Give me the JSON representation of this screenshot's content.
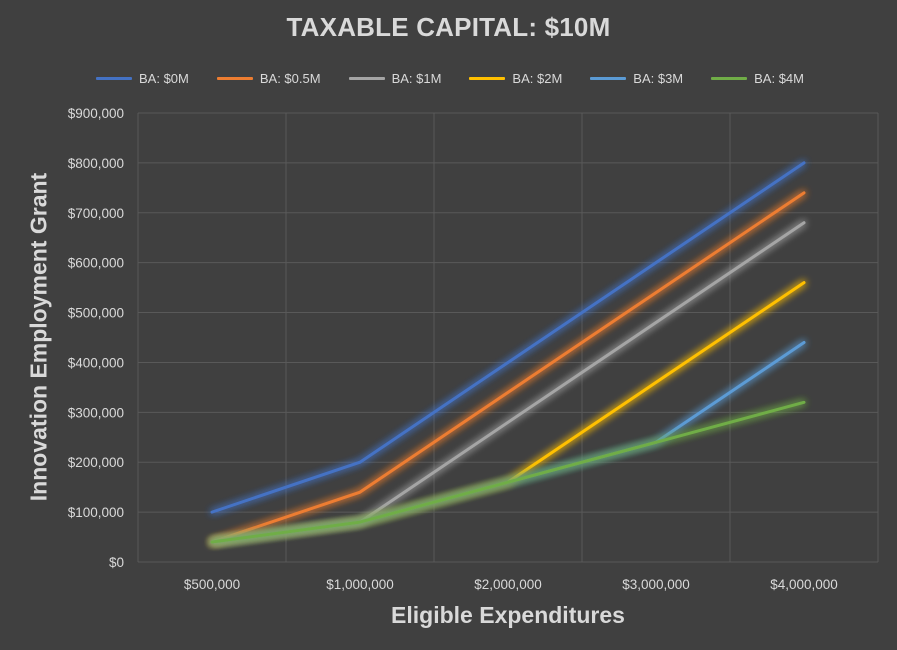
{
  "chart_data": {
    "type": "line",
    "title": "TAXABLE CAPITAL: $10M",
    "xlabel": "Eligible Expenditures",
    "ylabel": "Innovation Employment Grant",
    "categories": [
      "$500,000",
      "$1,000,000",
      "$2,000,000",
      "$3,000,000",
      "$4,000,000"
    ],
    "ylim": [
      0,
      900000
    ],
    "yticks": [
      0,
      100000,
      200000,
      300000,
      400000,
      500000,
      600000,
      700000,
      800000,
      900000
    ],
    "ytick_labels": [
      "$0",
      "$100,000",
      "$200,000",
      "$300,000",
      "$400,000",
      "$500,000",
      "$600,000",
      "$700,000",
      "$800,000",
      "$900,000"
    ],
    "grid": true,
    "legend_position": "top",
    "series": [
      {
        "name": "BA: $0M",
        "color": "#4472c4",
        "values": [
          100000,
          200000,
          400000,
          600000,
          800000
        ]
      },
      {
        "name": "BA: $0.5M",
        "color": "#ed7d31",
        "values": [
          40000,
          140000,
          340000,
          540000,
          740000
        ]
      },
      {
        "name": "BA: $1M",
        "color": "#a5a5a5",
        "values": [
          40000,
          80000,
          280000,
          480000,
          680000
        ]
      },
      {
        "name": "BA: $2M",
        "color": "#ffc000",
        "values": [
          40000,
          80000,
          160000,
          360000,
          560000
        ]
      },
      {
        "name": "BA: $3M",
        "color": "#5b9bd5",
        "values": [
          40000,
          80000,
          160000,
          240000,
          440000
        ]
      },
      {
        "name": "BA: $4M",
        "color": "#70ad47",
        "values": [
          40000,
          80000,
          160000,
          240000,
          320000
        ]
      }
    ]
  }
}
